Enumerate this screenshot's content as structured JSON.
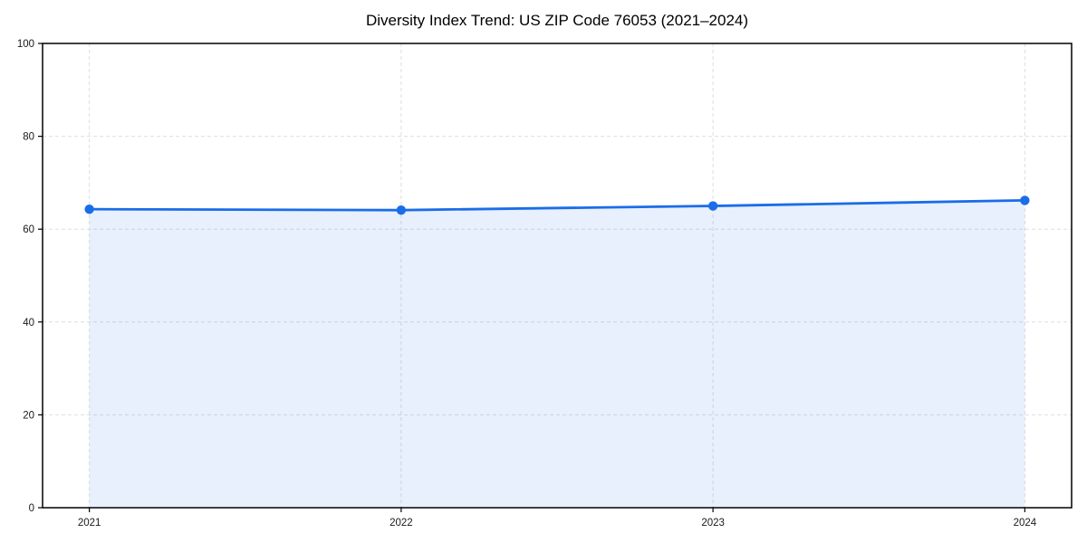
{
  "page": {
    "background_color": "#ffffff"
  },
  "chart_data": {
    "type": "area",
    "title": "Diversity Index Trend: US ZIP Code 76053 (2021–2024)",
    "series_name": "Diversity Index",
    "x": [
      2021,
      2022,
      2023,
      2024
    ],
    "values": [
      64.3,
      64.1,
      65.0,
      66.2
    ],
    "xlabel": "",
    "ylabel": "",
    "ylim": [
      0,
      100
    ],
    "yticks": [
      0,
      20,
      40,
      60,
      80,
      100
    ],
    "xticks": [
      "2021",
      "2022",
      "2023",
      "2024"
    ],
    "grid": true,
    "grid_style": "dashed",
    "legend_position": "none",
    "line_color": "#1a6de8",
    "marker_color": "#1a6de8",
    "fill_color": "rgba(26,109,232,0.10)",
    "grid_color": "#dedede",
    "axis_color": "#000000",
    "tick_label_color": "#1a1a1a"
  }
}
